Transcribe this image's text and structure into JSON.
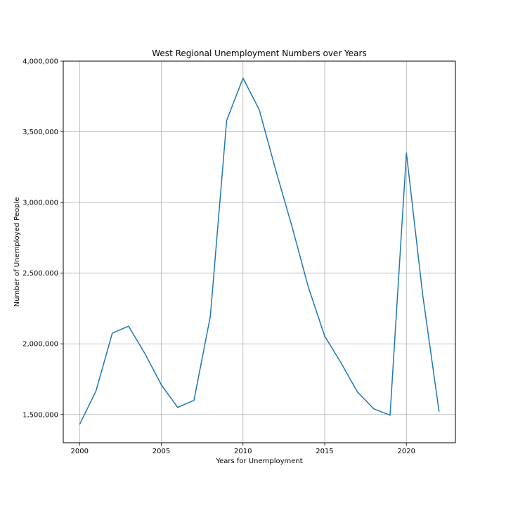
{
  "chart_data": {
    "type": "line",
    "title": "West Regional Unemployment Numbers over Years",
    "xlabel": "Years for Unemployment",
    "ylabel": "Number of Unemployed People",
    "xlim": [
      1999,
      2023
    ],
    "ylim": [
      1300000,
      4000000
    ],
    "x_ticks": [
      2000,
      2005,
      2010,
      2015,
      2020
    ],
    "x_tick_labels": [
      "2000",
      "2005",
      "2010",
      "2015",
      "2020"
    ],
    "y_ticks": [
      1500000,
      2000000,
      2500000,
      3000000,
      3500000,
      4000000
    ],
    "y_tick_labels": [
      "1,500,000",
      "2,000,000",
      "2,500,000",
      "3,000,000",
      "3,500,000",
      "4,000,000"
    ],
    "grid": true,
    "series": [
      {
        "color": "#1f77b4",
        "x": [
          2000,
          2001,
          2002,
          2003,
          2004,
          2005,
          2006,
          2007,
          2008,
          2009,
          2010,
          2011,
          2012,
          2013,
          2014,
          2015,
          2016,
          2017,
          2018,
          2019,
          2020,
          2021,
          2022
        ],
        "values": [
          1430000,
          1665000,
          2075000,
          2125000,
          1930000,
          1710000,
          1550000,
          1600000,
          2195000,
          3580000,
          3880000,
          3655000,
          3230000,
          2830000,
          2400000,
          2055000,
          1865000,
          1660000,
          1540000,
          1495000,
          3350000,
          2345000,
          1520000
        ]
      }
    ]
  }
}
